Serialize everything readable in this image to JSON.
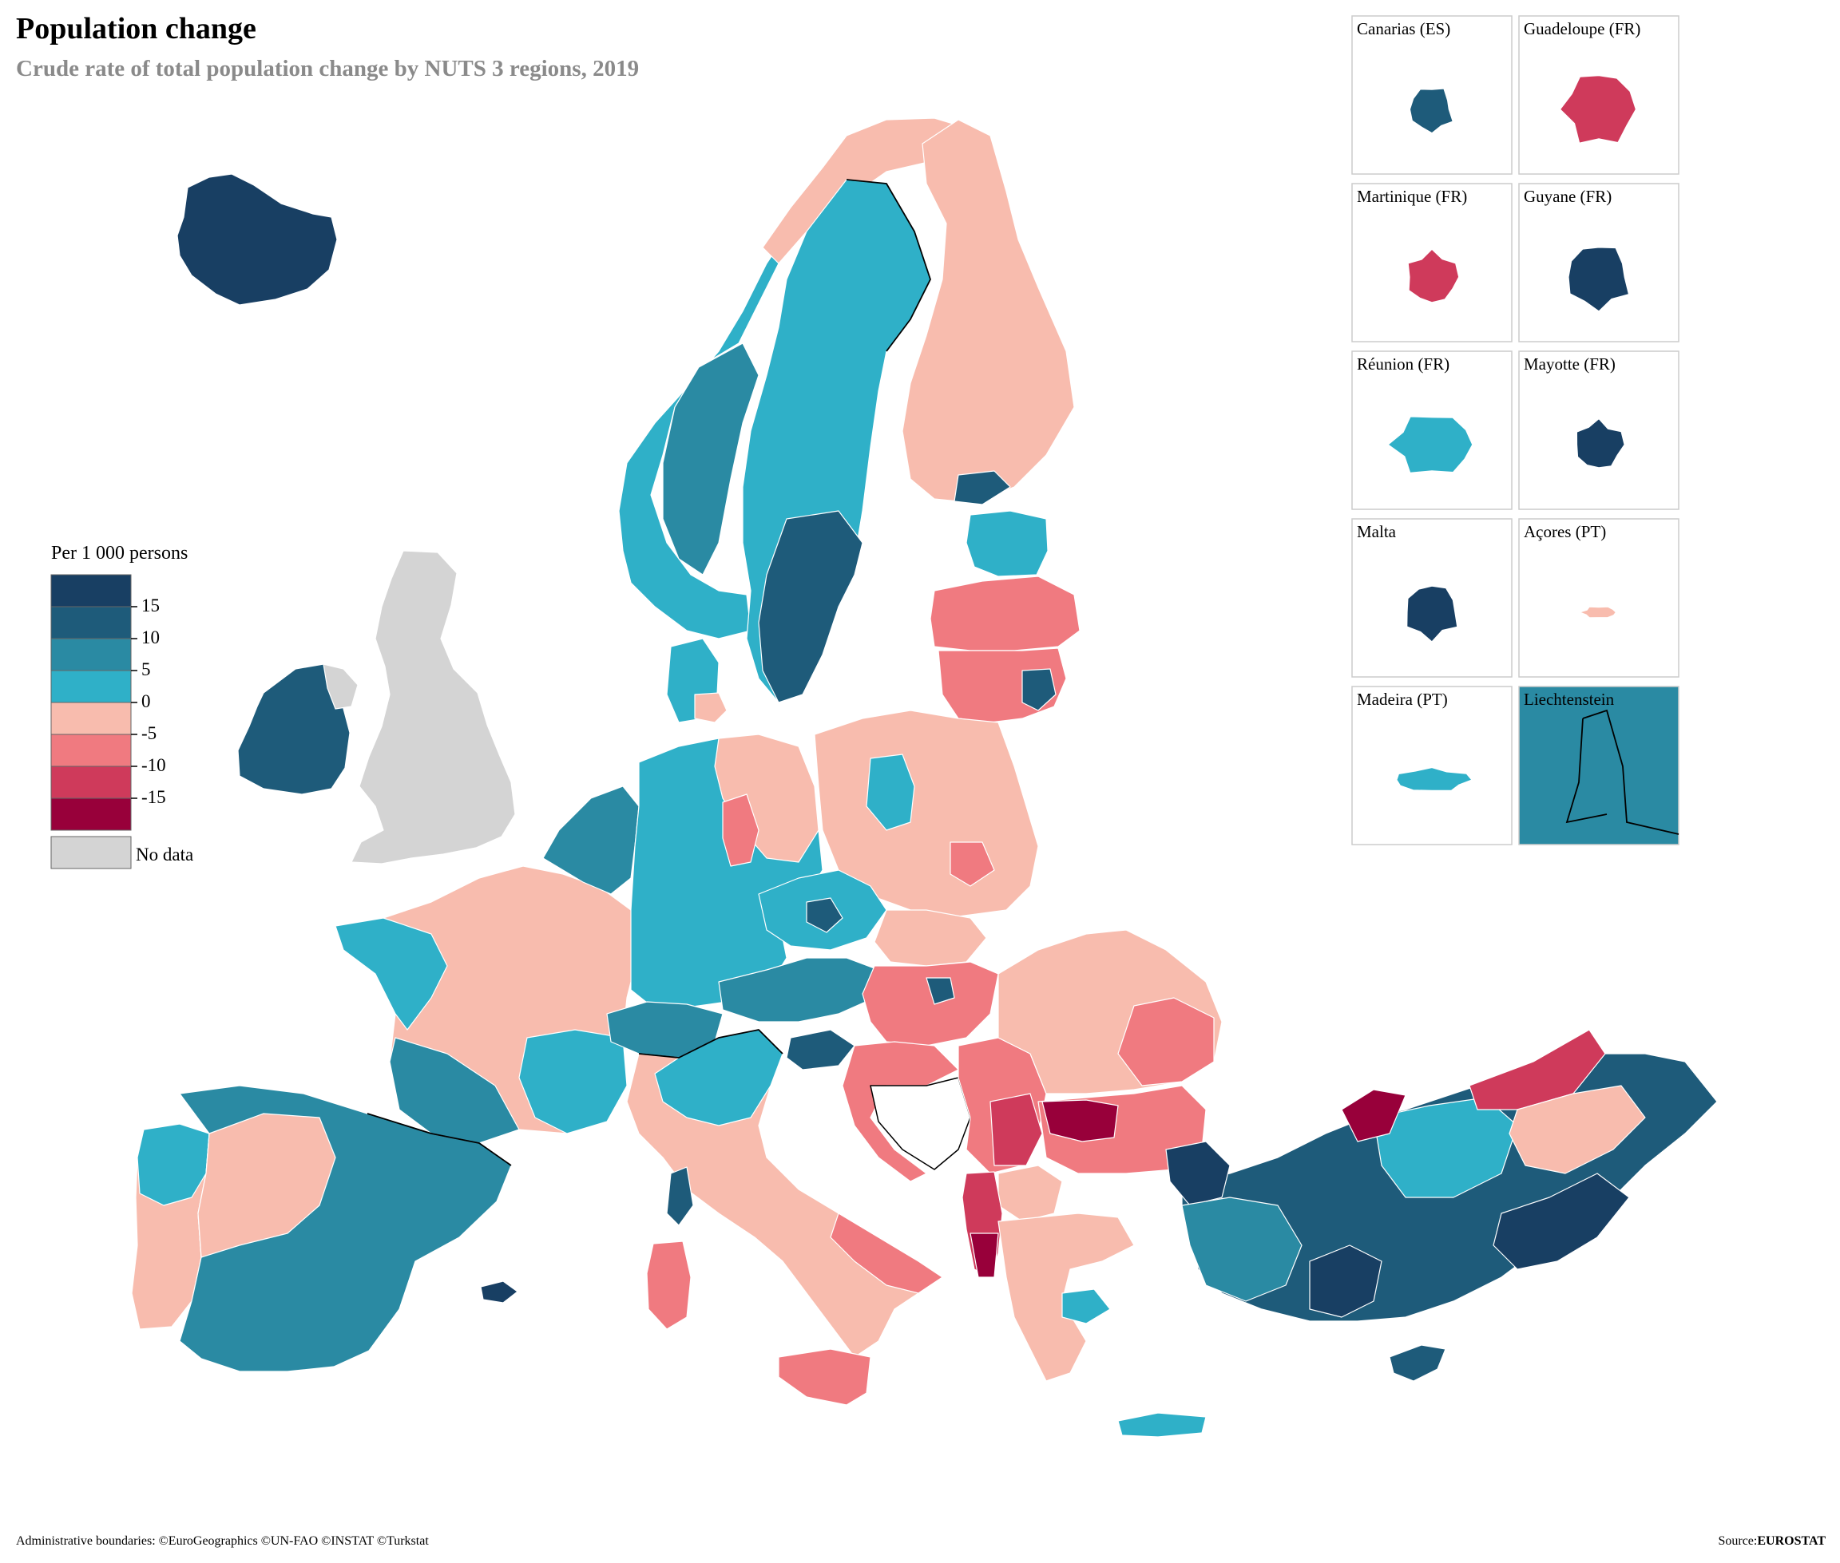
{
  "header": {
    "title": "Population change",
    "subtitle": "Crude rate of total population change by NUTS 3 regions, 2019"
  },
  "legend": {
    "title": "Per 1 000 persons",
    "ticks": [
      "15",
      "10",
      "5",
      "0",
      "-5",
      "-10",
      "-15"
    ],
    "no_data_label": "No data",
    "colors": [
      "#183f63",
      "#1e5b7a",
      "#2a8aa3",
      "#2fb0c8",
      "#f8bcae",
      "#f07a80",
      "#cf3a5b",
      "#98003a"
    ],
    "no_data_color": "#d4d4d4"
  },
  "insets": [
    {
      "name": "Canarias (ES)",
      "color": "#1e5b7a"
    },
    {
      "name": "Guadeloupe (FR)",
      "color": "#cf3a5b"
    },
    {
      "name": "Martinique (FR)",
      "color": "#cf3a5b"
    },
    {
      "name": "Guyane (FR)",
      "color": "#183f63"
    },
    {
      "name": "Réunion (FR)",
      "color": "#2fb0c8"
    },
    {
      "name": "Mayotte (FR)",
      "color": "#183f63"
    },
    {
      "name": "Malta",
      "color": "#183f63"
    },
    {
      "name": "Açores (PT)",
      "color": "#f8bcae"
    },
    {
      "name": "Madeira (PT)",
      "color": "#2fb0c8"
    },
    {
      "name": "Liechtenstein",
      "color": "#2a8aa3"
    }
  ],
  "footer": {
    "copyright": "Administrative boundaries: ©EuroGeographics ©UN-FAO ©INSTAT ©Turkstat",
    "source_prefix": "Source:",
    "source_name": "EUROSTAT"
  }
}
